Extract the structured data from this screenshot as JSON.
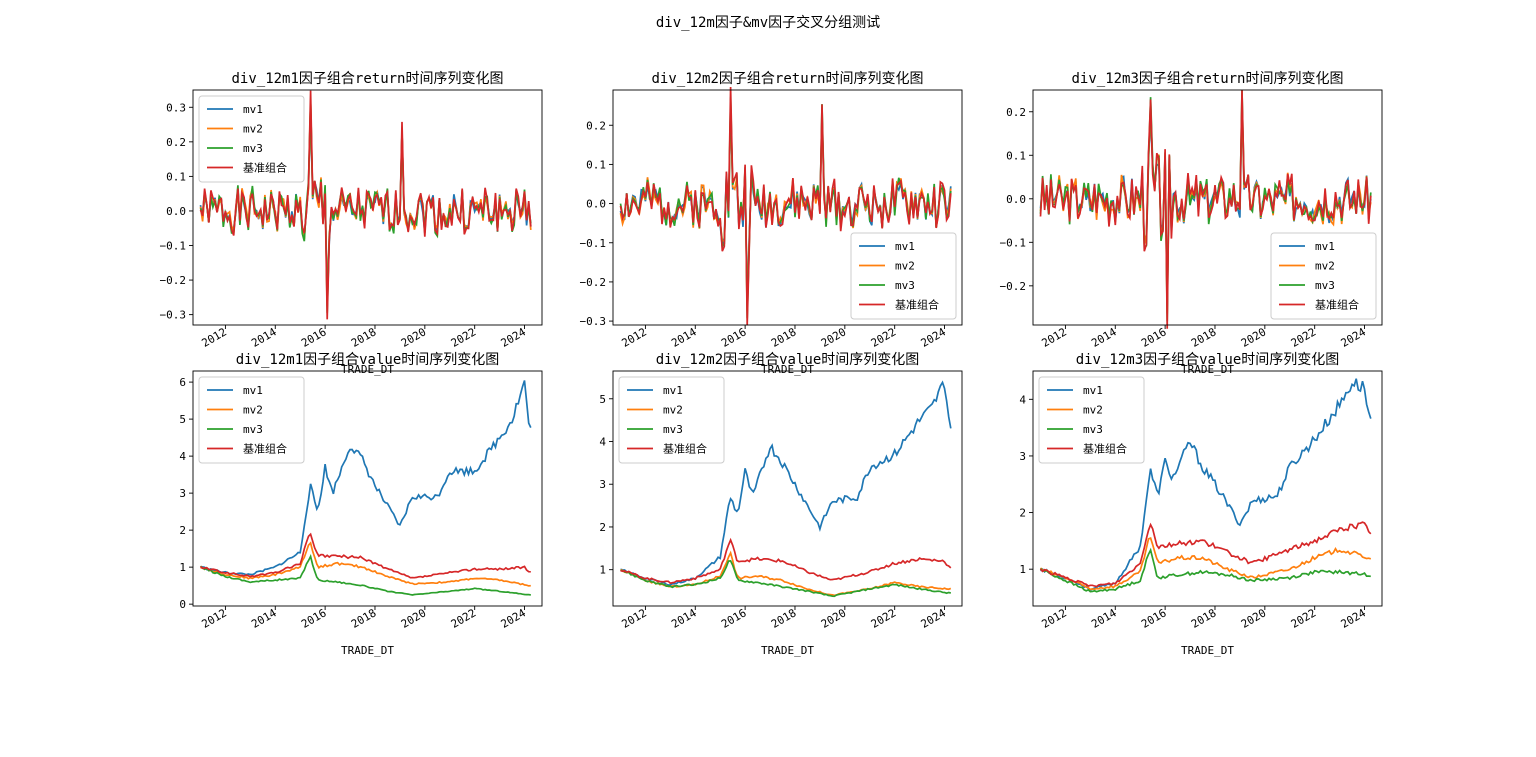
{
  "suptitle": "div_12m因子&mv因子交叉分组测试",
  "colors": {
    "mv1": "#1f77b4",
    "mv2": "#ff7f0e",
    "mv3": "#2ca02c",
    "基准组合": "#d62728"
  },
  "chart_data": [
    {
      "type": "line",
      "row": 0,
      "col": 0,
      "title": "div_12m1因子组合return时间序列变化图",
      "xlabel": "TRADE_DT",
      "x_ticks": [
        "2012",
        "2014",
        "2016",
        "2018",
        "2020",
        "2022",
        "2024"
      ],
      "y_ticks": [
        -0.3,
        -0.2,
        -0.1,
        0.0,
        0.1,
        0.2,
        0.3
      ],
      "xlim": [
        2010.7,
        2024.7
      ],
      "ylim": [
        -0.33,
        0.35
      ],
      "legend": "upper left",
      "series_names": [
        "mv1",
        "mv2",
        "mv3",
        "基准组合"
      ],
      "kind": "return",
      "amp": 0.06,
      "seed": 1,
      "extreme_min": -0.3,
      "extreme_max": 0.33
    },
    {
      "type": "line",
      "row": 0,
      "col": 1,
      "title": "div_12m2因子组合return时间序列变化图",
      "xlabel": "TRADE_DT",
      "x_ticks": [
        "2012",
        "2014",
        "2016",
        "2018",
        "2020",
        "2022",
        "2024"
      ],
      "y_ticks": [
        -0.3,
        -0.2,
        -0.1,
        0.0,
        0.1,
        0.2
      ],
      "xlim": [
        2010.7,
        2024.7
      ],
      "ylim": [
        -0.31,
        0.29
      ],
      "legend": "lower right",
      "series_names": [
        "mv1",
        "mv2",
        "mv3",
        "基准组合"
      ],
      "kind": "return",
      "amp": 0.055,
      "seed": 2,
      "extreme_min": -0.29,
      "extreme_max": 0.27
    },
    {
      "type": "line",
      "row": 0,
      "col": 2,
      "title": "div_12m3因子组合return时间序列变化图",
      "xlabel": "TRADE_DT",
      "x_ticks": [
        "2012",
        "2014",
        "2016",
        "2018",
        "2020",
        "2022",
        "2024"
      ],
      "y_ticks": [
        -0.2,
        -0.1,
        0.0,
        0.1,
        0.2
      ],
      "xlim": [
        2010.7,
        2024.7
      ],
      "ylim": [
        -0.29,
        0.25
      ],
      "legend": "lower right",
      "series_names": [
        "mv1",
        "mv2",
        "mv3",
        "基准组合"
      ],
      "kind": "return",
      "amp": 0.05,
      "seed": 3,
      "extreme_min": -0.27,
      "extreme_max": 0.22
    },
    {
      "type": "line",
      "row": 1,
      "col": 0,
      "title": "div_12m1因子组合value时间序列变化图",
      "xlabel": "TRADE_DT",
      "x_ticks": [
        "2012",
        "2014",
        "2016",
        "2018",
        "2020",
        "2022",
        "2024"
      ],
      "y_ticks": [
        0,
        1,
        2,
        3,
        4,
        5,
        6
      ],
      "xlim": [
        2010.7,
        2024.7
      ],
      "ylim": [
        -0.05,
        6.3
      ],
      "legend": "upper left",
      "series_names": [
        "mv1",
        "mv2",
        "mv3",
        "基准组合"
      ],
      "kind": "value",
      "keypoints": {
        "mv1": [
          [
            2011.0,
            1.0
          ],
          [
            2012.0,
            0.85
          ],
          [
            2013.0,
            0.8
          ],
          [
            2014.0,
            1.0
          ],
          [
            2015.0,
            1.4
          ],
          [
            2015.4,
            3.2
          ],
          [
            2015.7,
            2.5
          ],
          [
            2016.0,
            3.7
          ],
          [
            2016.3,
            3.0
          ],
          [
            2017.0,
            4.3
          ],
          [
            2017.5,
            3.9
          ],
          [
            2018.0,
            3.2
          ],
          [
            2019.0,
            2.1
          ],
          [
            2019.5,
            2.9
          ],
          [
            2020.5,
            2.9
          ],
          [
            2021.0,
            3.6
          ],
          [
            2022.0,
            3.6
          ],
          [
            2023.0,
            4.5
          ],
          [
            2023.5,
            5.0
          ],
          [
            2024.0,
            6.0
          ],
          [
            2024.2,
            4.7
          ]
        ],
        "mv2": [
          [
            2011.0,
            1.0
          ],
          [
            2012.0,
            0.8
          ],
          [
            2013.0,
            0.7
          ],
          [
            2014.0,
            0.8
          ],
          [
            2015.0,
            1.0
          ],
          [
            2015.4,
            1.7
          ],
          [
            2015.7,
            1.0
          ],
          [
            2016.5,
            1.1
          ],
          [
            2017.5,
            1.0
          ],
          [
            2018.5,
            0.75
          ],
          [
            2019.5,
            0.55
          ],
          [
            2021.0,
            0.6
          ],
          [
            2022.0,
            0.7
          ],
          [
            2023.0,
            0.65
          ],
          [
            2024.2,
            0.5
          ]
        ],
        "mv3": [
          [
            2011.0,
            1.0
          ],
          [
            2012.0,
            0.75
          ],
          [
            2013.0,
            0.6
          ],
          [
            2014.0,
            0.65
          ],
          [
            2015.0,
            0.7
          ],
          [
            2015.4,
            1.3
          ],
          [
            2015.7,
            0.65
          ],
          [
            2016.5,
            0.6
          ],
          [
            2017.5,
            0.5
          ],
          [
            2018.5,
            0.35
          ],
          [
            2019.5,
            0.25
          ],
          [
            2021.0,
            0.35
          ],
          [
            2022.0,
            0.42
          ],
          [
            2023.0,
            0.35
          ],
          [
            2024.2,
            0.25
          ]
        ],
        "基准组合": [
          [
            2011.0,
            1.0
          ],
          [
            2012.0,
            0.85
          ],
          [
            2013.0,
            0.75
          ],
          [
            2014.0,
            0.85
          ],
          [
            2015.0,
            1.1
          ],
          [
            2015.4,
            1.95
          ],
          [
            2015.7,
            1.3
          ],
          [
            2016.5,
            1.3
          ],
          [
            2017.5,
            1.25
          ],
          [
            2018.5,
            0.95
          ],
          [
            2019.5,
            0.7
          ],
          [
            2021.0,
            0.85
          ],
          [
            2022.0,
            0.95
          ],
          [
            2023.0,
            0.95
          ],
          [
            2024.0,
            1.0
          ],
          [
            2024.2,
            0.85
          ]
        ]
      }
    },
    {
      "type": "line",
      "row": 1,
      "col": 1,
      "title": "div_12m2因子组合value时间序列变化图",
      "xlabel": "TRADE_DT",
      "x_ticks": [
        "2012",
        "2014",
        "2016",
        "2018",
        "2020",
        "2022",
        "2024"
      ],
      "y_ticks": [
        1,
        2,
        3,
        4,
        5
      ],
      "xlim": [
        2010.7,
        2024.7
      ],
      "ylim": [
        0.15,
        5.65
      ],
      "legend": "upper left",
      "series_names": [
        "mv1",
        "mv2",
        "mv3",
        "基准组合"
      ],
      "kind": "value",
      "keypoints": {
        "mv1": [
          [
            2011.0,
            1.0
          ],
          [
            2012.0,
            0.8
          ],
          [
            2013.0,
            0.65
          ],
          [
            2014.0,
            0.8
          ],
          [
            2015.0,
            1.3
          ],
          [
            2015.4,
            2.7
          ],
          [
            2015.7,
            2.3
          ],
          [
            2016.0,
            3.3
          ],
          [
            2016.3,
            2.7
          ],
          [
            2017.0,
            3.9
          ],
          [
            2017.5,
            3.5
          ],
          [
            2018.0,
            3.0
          ],
          [
            2019.0,
            2.0
          ],
          [
            2019.5,
            2.6
          ],
          [
            2020.5,
            2.7
          ],
          [
            2021.0,
            3.4
          ],
          [
            2022.0,
            3.7
          ],
          [
            2023.0,
            4.5
          ],
          [
            2023.5,
            4.8
          ],
          [
            2024.0,
            5.4
          ],
          [
            2024.2,
            4.4
          ]
        ],
        "mv2": [
          [
            2011.0,
            1.0
          ],
          [
            2012.0,
            0.75
          ],
          [
            2013.0,
            0.6
          ],
          [
            2014.0,
            0.65
          ],
          [
            2015.0,
            0.85
          ],
          [
            2015.4,
            1.4
          ],
          [
            2015.7,
            0.8
          ],
          [
            2016.5,
            0.85
          ],
          [
            2017.5,
            0.75
          ],
          [
            2018.5,
            0.55
          ],
          [
            2019.5,
            0.4
          ],
          [
            2021.0,
            0.55
          ],
          [
            2022.0,
            0.7
          ],
          [
            2023.0,
            0.6
          ],
          [
            2024.2,
            0.55
          ]
        ],
        "mv3": [
          [
            2011.0,
            1.0
          ],
          [
            2012.0,
            0.75
          ],
          [
            2013.0,
            0.6
          ],
          [
            2014.0,
            0.65
          ],
          [
            2015.0,
            0.8
          ],
          [
            2015.4,
            1.25
          ],
          [
            2015.7,
            0.75
          ],
          [
            2016.5,
            0.7
          ],
          [
            2017.5,
            0.6
          ],
          [
            2018.5,
            0.5
          ],
          [
            2019.5,
            0.38
          ],
          [
            2021.0,
            0.55
          ],
          [
            2022.0,
            0.65
          ],
          [
            2023.0,
            0.55
          ],
          [
            2024.2,
            0.45
          ]
        ],
        "基准组合": [
          [
            2011.0,
            1.0
          ],
          [
            2012.0,
            0.8
          ],
          [
            2013.0,
            0.7
          ],
          [
            2014.0,
            0.8
          ],
          [
            2015.0,
            1.0
          ],
          [
            2015.4,
            1.7
          ],
          [
            2015.7,
            1.2
          ],
          [
            2016.5,
            1.25
          ],
          [
            2017.5,
            1.2
          ],
          [
            2018.5,
            0.95
          ],
          [
            2019.5,
            0.75
          ],
          [
            2021.0,
            0.95
          ],
          [
            2022.0,
            1.15
          ],
          [
            2023.0,
            1.25
          ],
          [
            2024.0,
            1.2
          ],
          [
            2024.2,
            1.05
          ]
        ]
      }
    },
    {
      "type": "line",
      "row": 1,
      "col": 2,
      "title": "div_12m3因子组合value时间序列变化图",
      "xlabel": "TRADE_DT",
      "x_ticks": [
        "2012",
        "2014",
        "2016",
        "2018",
        "2020",
        "2022",
        "2024"
      ],
      "y_ticks": [
        1,
        2,
        3,
        4
      ],
      "xlim": [
        2010.7,
        2024.7
      ],
      "ylim": [
        0.35,
        4.5
      ],
      "legend": "upper left",
      "series_names": [
        "mv1",
        "mv2",
        "mv3",
        "基准组合"
      ],
      "kind": "value",
      "keypoints": {
        "mv1": [
          [
            2011.0,
            1.0
          ],
          [
            2012.0,
            0.85
          ],
          [
            2013.0,
            0.65
          ],
          [
            2014.0,
            0.75
          ],
          [
            2015.0,
            1.4
          ],
          [
            2015.4,
            2.75
          ],
          [
            2015.7,
            2.3
          ],
          [
            2016.0,
            2.9
          ],
          [
            2016.3,
            2.6
          ],
          [
            2017.0,
            3.25
          ],
          [
            2017.5,
            2.8
          ],
          [
            2018.0,
            2.5
          ],
          [
            2019.0,
            1.8
          ],
          [
            2019.5,
            2.2
          ],
          [
            2020.5,
            2.3
          ],
          [
            2021.0,
            2.8
          ],
          [
            2022.0,
            3.3
          ],
          [
            2023.0,
            3.9
          ],
          [
            2023.5,
            4.3
          ],
          [
            2024.0,
            4.2
          ],
          [
            2024.2,
            3.65
          ]
        ],
        "mv2": [
          [
            2011.0,
            1.0
          ],
          [
            2012.0,
            0.85
          ],
          [
            2013.0,
            0.65
          ],
          [
            2014.0,
            0.7
          ],
          [
            2015.0,
            0.95
          ],
          [
            2015.4,
            1.6
          ],
          [
            2015.7,
            1.1
          ],
          [
            2016.5,
            1.2
          ],
          [
            2017.5,
            1.2
          ],
          [
            2018.5,
            1.0
          ],
          [
            2019.5,
            0.85
          ],
          [
            2021.0,
            1.0
          ],
          [
            2022.0,
            1.2
          ],
          [
            2023.0,
            1.35
          ],
          [
            2024.2,
            1.2
          ]
        ],
        "mv3": [
          [
            2011.0,
            1.0
          ],
          [
            2012.0,
            0.8
          ],
          [
            2013.0,
            0.6
          ],
          [
            2014.0,
            0.65
          ],
          [
            2015.0,
            0.8
          ],
          [
            2015.4,
            1.35
          ],
          [
            2015.7,
            0.85
          ],
          [
            2016.5,
            0.9
          ],
          [
            2017.5,
            0.95
          ],
          [
            2018.5,
            0.9
          ],
          [
            2019.5,
            0.8
          ],
          [
            2021.0,
            0.85
          ],
          [
            2022.0,
            0.95
          ],
          [
            2023.0,
            0.95
          ],
          [
            2024.2,
            0.9
          ]
        ],
        "基准组合": [
          [
            2011.0,
            1.0
          ],
          [
            2012.0,
            0.85
          ],
          [
            2013.0,
            0.7
          ],
          [
            2014.0,
            0.75
          ],
          [
            2015.0,
            1.1
          ],
          [
            2015.4,
            1.85
          ],
          [
            2015.7,
            1.4
          ],
          [
            2016.5,
            1.45
          ],
          [
            2017.5,
            1.5
          ],
          [
            2018.5,
            1.3
          ],
          [
            2019.5,
            1.1
          ],
          [
            2021.0,
            1.35
          ],
          [
            2022.0,
            1.5
          ],
          [
            2023.0,
            1.7
          ],
          [
            2024.0,
            1.8
          ],
          [
            2024.2,
            1.6
          ]
        ]
      }
    }
  ]
}
